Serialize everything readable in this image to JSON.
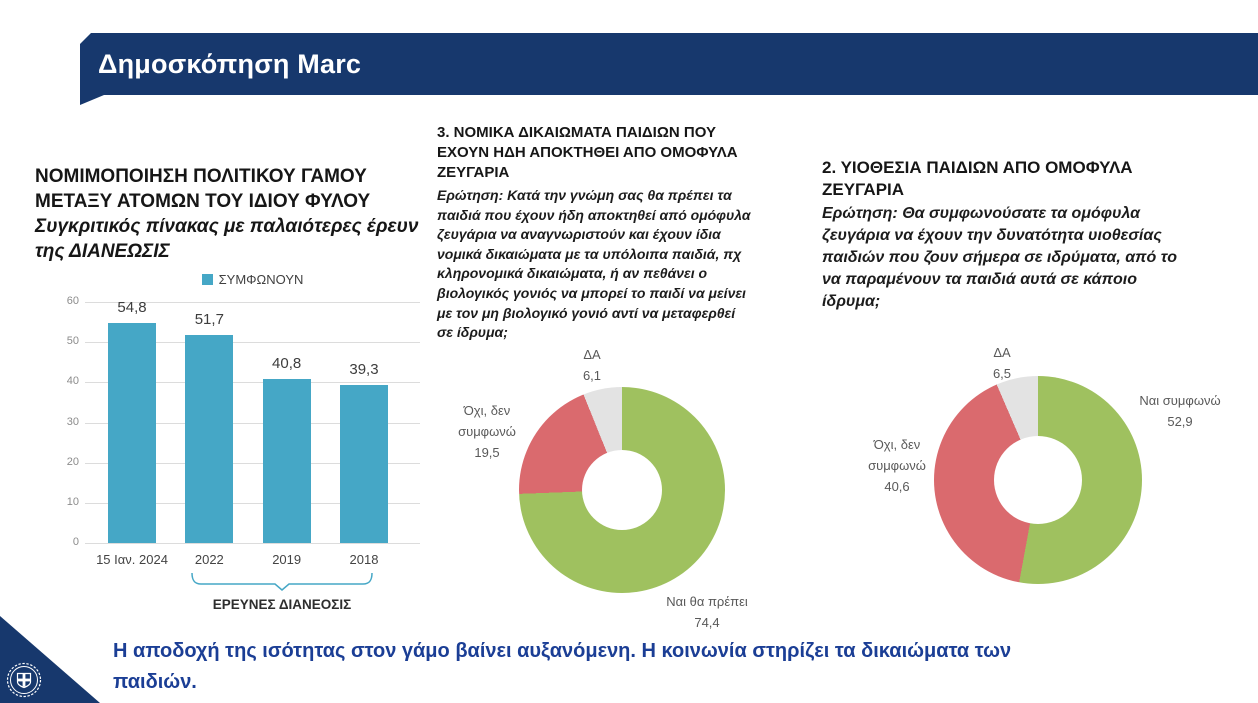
{
  "header": {
    "title": "Δημοσκόπηση Marc"
  },
  "colors": {
    "navy": "#17386d",
    "teal": "#45a7c6",
    "green": "#9fc15f",
    "red": "#da6a6e",
    "gray": "#e3e3e3",
    "accent": "#1b3e95"
  },
  "left_panel": {
    "title": "ΝΟΜΙΜΟΠΟΙΗΣΗ ΠΟΛΙΤΙΚΟΥ ΓΑΜΟΥ\nΜΕΤΑΞΥ ΑΤΟΜΩΝ ΤΟΥ ΙΔΙΟΥ ΦΥΛΟΥ",
    "subtitle": "Συγκριτικός πίνακας με παλαιότερες έρευν\nτης ΔΙΑΝΕΩΣΙΣ"
  },
  "middle_panel": {
    "title": "3. ΝΟΜΙΚΑ ΔΙΚΑΙΩΜΑΤΑ ΠΑΙΔΙΩΝ ΠΟΥ\nΕΧΟΥΝ ΗΔΗ ΑΠΟΚΤΗΘΕΙ ΑΠΟ ΟΜΟΦΥΛΑ\nΖΕΥΓΑΡΙΑ",
    "question": "Ερώτηση: Κατά την γνώμη σας θα πρέπει τα\nπαιδιά που έχουν ήδη αποκτηθεί από ομόφυλα\nζευγάρια να αναγνωριστούν και έχουν ίδια\nνομικά δικαιώματα με τα υπόλοιπα παιδιά, πχ\nκληρονομικά δικαιώματα, ή αν πεθάνει ο\nβιολογικός γονιός να μπορεί το παιδί να μείνει\nμε τον μη βιολογικό γονιό αντί να μεταφερθεί\nσε ίδρυμα;"
  },
  "right_panel": {
    "title": "2. ΥΙΟΘΕΣΙΑ ΠΑΙΔΙΩΝ ΑΠΟ ΟΜΟΦΥΛΑ\nΖΕΥΓΑΡΙΑ",
    "question": "Ερώτηση: Θα συμφωνούσατε τα ομόφυλα\nζευγάρια να έχουν την δυνατότητα υιοθεσίας\nπαιδιών που ζουν σήμερα σε ιδρύματα, από το\nνα παραμένουν τα παιδιά αυτά σε κάποιο\nίδρυμα;"
  },
  "summary": {
    "text": "Η αποδοχή της ισότητας στον γάμο βαίνει αυξανόμενη. Η κοινωνία στηρίζει τα δικαιώματα των παιδιών."
  },
  "chart_data": [
    {
      "type": "bar",
      "legend": "ΣΥΜΦΩΝΟΥΝ",
      "legend_position": "top",
      "categories": [
        "15 Ιαν. 2024",
        "2022",
        "2019",
        "2018"
      ],
      "values": [
        54.8,
        51.7,
        40.8,
        39.3
      ],
      "value_labels": [
        "54,8",
        "51,7",
        "40,8",
        "39,3"
      ],
      "ylim": [
        0,
        60
      ],
      "yticks": [
        60,
        50,
        40,
        30,
        20,
        10,
        0
      ],
      "grid": true,
      "color": "#45a7c6",
      "bracket_label": "ΕΡΕΥΝΕΣ ΔΙΑΝΕΟΣΙΣ",
      "bracket_span": [
        "2022",
        "2018"
      ]
    },
    {
      "type": "donut",
      "title": "3. ΝΟΜΙΚΑ ΔΙΚΑΙΩΜΑΤΑ ΠΑΙΔΙΩΝ ΠΟΥ ΕΧΟΥΝ ΗΔΗ ΑΠΟΚΤΗΘΕΙ ΑΠΟ ΟΜΟΦΥΛΑ ΖΕΥΓΑΡΙΑ",
      "slices": [
        {
          "label": "Ναι θα πρέπει",
          "value": 74.4,
          "display": "74,4",
          "color": "#9fc15f"
        },
        {
          "label": "Όχι, δεν συμφωνώ",
          "value": 19.5,
          "display": "19,5",
          "color": "#da6a6e"
        },
        {
          "label": "ΔΑ",
          "value": 6.1,
          "display": "6,1",
          "color": "#e3e3e3"
        }
      ]
    },
    {
      "type": "donut",
      "title": "2. ΥΙΟΘΕΣΙΑ ΠΑΙΔΙΩΝ ΑΠΟ ΟΜΟΦΥΛΑ ΖΕΥΓΑΡΙΑ",
      "slices": [
        {
          "label": "Ναι συμφωνώ",
          "value": 52.9,
          "display": "52,9",
          "color": "#9fc15f"
        },
        {
          "label": "Όχι, δεν συμφωνώ",
          "value": 40.6,
          "display": "40,6",
          "color": "#da6a6e"
        },
        {
          "label": "ΔΑ",
          "value": 6.5,
          "display": "6,5",
          "color": "#e3e3e3"
        }
      ]
    }
  ]
}
